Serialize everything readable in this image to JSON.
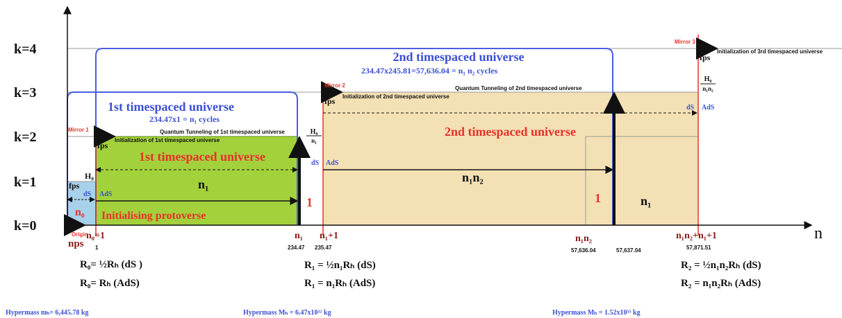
{
  "axis": {
    "y_labels": [
      "k=4",
      "k=3",
      "k=2",
      "k=1",
      "k=0"
    ],
    "x_label": "n"
  },
  "annotations": [
    "2nd timespaced universe",
    "234.47x245.81=57,636.04 = n₁ n₂ cycles",
    "1st timespaced universe",
    "234.47x1 = n₁ cycles",
    "Mirror 1",
    "Mirror 2",
    "Mirror 3",
    "Quantum Tunneling of 1st timespaced universe",
    "Initialization of  1st timespaced universe",
    "Initialization of  2nd timespaced universe",
    "Quantum Tunneling of 2nd timespaced universe",
    "Initialization of 3rd timespaced universe",
    "fps",
    "fps",
    "fps",
    "fps",
    "H₀",
    "n₁n₂",
    "H₀",
    "n₁",
    "H₀",
    "dS",
    "AdS",
    "dS",
    "AdS",
    "dS",
    "AdS",
    "1st timespaced universe",
    "2nd timespaced universe",
    "n₁",
    "n₁n₂",
    "1",
    "1",
    "n₁",
    "n₀",
    "Initialising protoverse"
  ],
  "axis_ticks": [
    "Origin",
    "nps",
    "n₀=1",
    "1",
    "n₁",
    "n₁+1",
    "234.47",
    "235.47",
    "n₁n₂",
    "57,636.04",
    "57,637.04",
    "n₁n₂+n₁+1",
    "57,871.51"
  ],
  "equations": [
    "R₀= ½Rₕ   (dS )",
    "R₀=    Rₕ    (AdS)",
    "R₁ = ½n₁Rₕ   (dS)",
    "R₁ =    n₁Rₕ   (AdS)",
    "R₂ = ½n₁n₂Rₕ   (dS)",
    "R₂ =    n₁n₂Rₕ    (AdS)"
  ],
  "hypermass": [
    "Hypermass mₕ= 6,445.78  kg",
    "Hypermass Mₕ = 6.47x10³² kg",
    "Hypermass Mₕ = 1.52x10⁵⁵ kg"
  ]
}
